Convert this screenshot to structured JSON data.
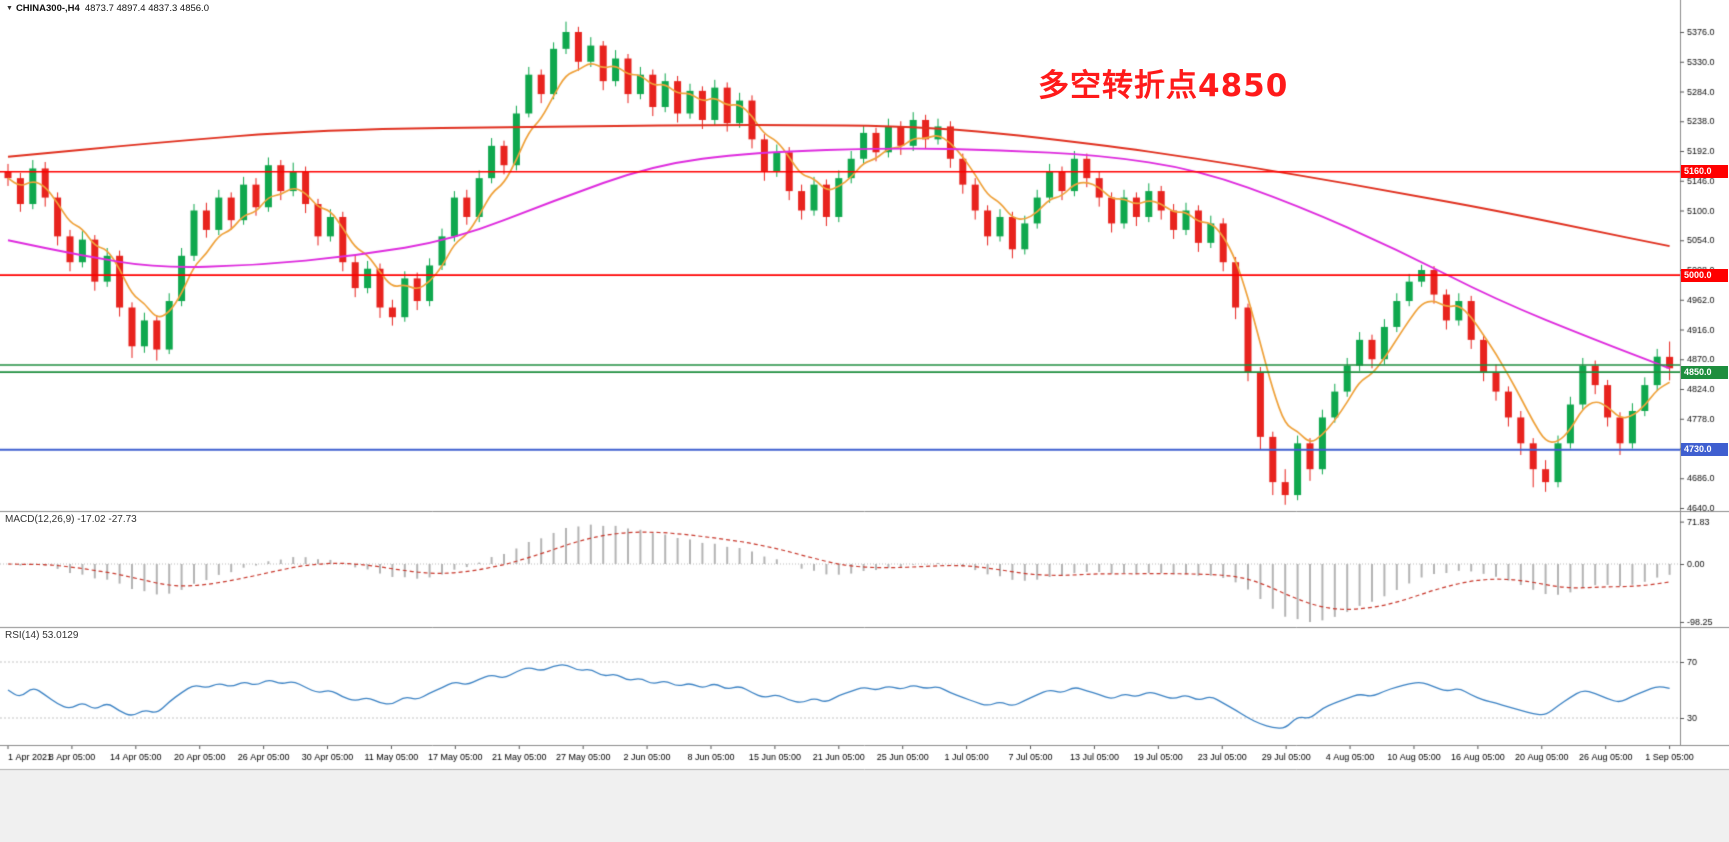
{
  "header": {
    "dropdown_icon": "▼",
    "symbol": "CHINA300-,H4",
    "ohlc": "4873.7 4897.4 4837.3 4856.0"
  },
  "annotation": {
    "text": "多空转折点4850",
    "color": "#FF1A1A"
  },
  "indicators": {
    "macd": {
      "label": "MACD(12,26,9) -17.02 -27.73"
    },
    "rsi": {
      "label": "RSI(14) 53.0129"
    }
  },
  "chart_data": {
    "type": "candlestick",
    "symbol": "CHINA300-",
    "timeframe": "H4",
    "title": "CHINA300- H4 chart with MACD and RSI",
    "y_range": [
      4640,
      5376
    ],
    "y_ticks": [
      5376.0,
      5330.0,
      5284.0,
      5238.0,
      5192.0,
      5146.0,
      5100.0,
      5054.0,
      5008.0,
      4962.0,
      4916.0,
      4870.0,
      4824.0,
      4778.0,
      4732.0,
      4686.0,
      4640.0
    ],
    "x_ticks": [
      "1 Apr 2021",
      "8 Apr 05:00",
      "14 Apr 05:00",
      "20 Apr 05:00",
      "26 Apr 05:00",
      "30 Apr 05:00",
      "11 May 05:00",
      "17 May 05:00",
      "21 May 05:00",
      "27 May 05:00",
      "2 Jun 05:00",
      "8 Jun 05:00",
      "15 Jun 05:00",
      "21 Jun 05:00",
      "25 Jun 05:00",
      "1 Jul 05:00",
      "7 Jul 05:00",
      "13 Jul 05:00",
      "19 Jul 05:00",
      "23 Jul 05:00",
      "29 Jul 05:00",
      "4 Aug 05:00",
      "10 Aug 05:00",
      "16 Aug 05:00",
      "20 Aug 05:00",
      "26 Aug 05:00",
      "1 Sep 05:00"
    ],
    "colors": {
      "up": "#0FA84E",
      "down": "#E8231E",
      "axis_text": "#111111"
    },
    "candles": [
      [
        5160,
        5172,
        5138,
        5150
      ],
      [
        5150,
        5158,
        5098,
        5110
      ],
      [
        5110,
        5178,
        5102,
        5165
      ],
      [
        5165,
        5175,
        5106,
        5120
      ],
      [
        5120,
        5128,
        5046,
        5060
      ],
      [
        5060,
        5070,
        5006,
        5020
      ],
      [
        5020,
        5068,
        5012,
        5055
      ],
      [
        5055,
        5062,
        4976,
        4990
      ],
      [
        4990,
        5042,
        4982,
        5030
      ],
      [
        5030,
        5038,
        4936,
        4950
      ],
      [
        4950,
        4958,
        4872,
        4890
      ],
      [
        4890,
        4942,
        4880,
        4930
      ],
      [
        4930,
        4938,
        4868,
        4885
      ],
      [
        4885,
        4972,
        4878,
        4960
      ],
      [
        4960,
        5042,
        4952,
        5030
      ],
      [
        5030,
        5110,
        5022,
        5100
      ],
      [
        5100,
        5112,
        5058,
        5070
      ],
      [
        5070,
        5132,
        5062,
        5120
      ],
      [
        5120,
        5128,
        5070,
        5085
      ],
      [
        5085,
        5152,
        5078,
        5140
      ],
      [
        5140,
        5150,
        5092,
        5105
      ],
      [
        5105,
        5182,
        5098,
        5170
      ],
      [
        5170,
        5178,
        5116,
        5130
      ],
      [
        5130,
        5174,
        5122,
        5160
      ],
      [
        5160,
        5168,
        5096,
        5110
      ],
      [
        5110,
        5118,
        5046,
        5060
      ],
      [
        5060,
        5102,
        5052,
        5090
      ],
      [
        5090,
        5098,
        5006,
        5020
      ],
      [
        5020,
        5030,
        4966,
        4980
      ],
      [
        4980,
        5022,
        4972,
        5010
      ],
      [
        5010,
        5018,
        4934,
        4950
      ],
      [
        4950,
        4962,
        4922,
        4935
      ],
      [
        4935,
        5006,
        4928,
        4995
      ],
      [
        4995,
        5004,
        4946,
        4960
      ],
      [
        4960,
        5026,
        4952,
        5015
      ],
      [
        5015,
        5072,
        5008,
        5060
      ],
      [
        5060,
        5130,
        5052,
        5120
      ],
      [
        5120,
        5132,
        5078,
        5090
      ],
      [
        5090,
        5162,
        5082,
        5150
      ],
      [
        5150,
        5212,
        5142,
        5200
      ],
      [
        5200,
        5208,
        5156,
        5170
      ],
      [
        5170,
        5262,
        5162,
        5250
      ],
      [
        5250,
        5322,
        5244,
        5310
      ],
      [
        5310,
        5318,
        5266,
        5280
      ],
      [
        5280,
        5360,
        5272,
        5350
      ],
      [
        5350,
        5392,
        5342,
        5376
      ],
      [
        5376,
        5384,
        5316,
        5330
      ],
      [
        5330,
        5368,
        5322,
        5355
      ],
      [
        5355,
        5362,
        5286,
        5300
      ],
      [
        5300,
        5348,
        5292,
        5335
      ],
      [
        5335,
        5342,
        5266,
        5280
      ],
      [
        5280,
        5322,
        5272,
        5310
      ],
      [
        5310,
        5318,
        5246,
        5260
      ],
      [
        5260,
        5312,
        5252,
        5300
      ],
      [
        5300,
        5308,
        5236,
        5250
      ],
      [
        5250,
        5296,
        5242,
        5285
      ],
      [
        5285,
        5292,
        5226,
        5240
      ],
      [
        5240,
        5302,
        5232,
        5290
      ],
      [
        5290,
        5298,
        5222,
        5235
      ],
      [
        5235,
        5282,
        5228,
        5270
      ],
      [
        5270,
        5278,
        5196,
        5210
      ],
      [
        5210,
        5218,
        5146,
        5160
      ],
      [
        5160,
        5202,
        5152,
        5190
      ],
      [
        5190,
        5198,
        5116,
        5130
      ],
      [
        5130,
        5140,
        5086,
        5100
      ],
      [
        5100,
        5152,
        5092,
        5140
      ],
      [
        5140,
        5148,
        5076,
        5090
      ],
      [
        5090,
        5162,
        5082,
        5150
      ],
      [
        5150,
        5192,
        5142,
        5180
      ],
      [
        5180,
        5232,
        5172,
        5220
      ],
      [
        5220,
        5228,
        5176,
        5190
      ],
      [
        5190,
        5242,
        5182,
        5230
      ],
      [
        5230,
        5238,
        5186,
        5200
      ],
      [
        5200,
        5252,
        5192,
        5240
      ],
      [
        5240,
        5248,
        5196,
        5210
      ],
      [
        5210,
        5242,
        5202,
        5230
      ],
      [
        5230,
        5238,
        5166,
        5180
      ],
      [
        5180,
        5188,
        5126,
        5140
      ],
      [
        5140,
        5150,
        5086,
        5100
      ],
      [
        5100,
        5108,
        5046,
        5060
      ],
      [
        5060,
        5102,
        5052,
        5090
      ],
      [
        5090,
        5098,
        5026,
        5040
      ],
      [
        5040,
        5092,
        5032,
        5080
      ],
      [
        5080,
        5132,
        5072,
        5120
      ],
      [
        5120,
        5172,
        5112,
        5160
      ],
      [
        5160,
        5168,
        5116,
        5130
      ],
      [
        5130,
        5192,
        5122,
        5180
      ],
      [
        5180,
        5188,
        5136,
        5150
      ],
      [
        5150,
        5160,
        5106,
        5120
      ],
      [
        5120,
        5128,
        5066,
        5080
      ],
      [
        5080,
        5132,
        5072,
        5120
      ],
      [
        5120,
        5128,
        5076,
        5090
      ],
      [
        5090,
        5142,
        5082,
        5130
      ],
      [
        5130,
        5138,
        5086,
        5100
      ],
      [
        5100,
        5110,
        5056,
        5070
      ],
      [
        5070,
        5112,
        5062,
        5100
      ],
      [
        5100,
        5108,
        5036,
        5050
      ],
      [
        5050,
        5092,
        5042,
        5080
      ],
      [
        5080,
        5088,
        5006,
        5020
      ],
      [
        5020,
        5028,
        4932,
        4950
      ],
      [
        4950,
        4956,
        4836,
        4850
      ],
      [
        4850,
        4858,
        4730,
        4750
      ],
      [
        4750,
        4758,
        4660,
        4680
      ],
      [
        4680,
        4700,
        4645,
        4660
      ],
      [
        4660,
        4752,
        4652,
        4740
      ],
      [
        4740,
        4748,
        4682,
        4700
      ],
      [
        4700,
        4792,
        4692,
        4780
      ],
      [
        4780,
        4832,
        4772,
        4820
      ],
      [
        4820,
        4872,
        4812,
        4860
      ],
      [
        4860,
        4912,
        4852,
        4900
      ],
      [
        4900,
        4908,
        4856,
        4870
      ],
      [
        4870,
        4932,
        4862,
        4920
      ],
      [
        4920,
        4972,
        4912,
        4960
      ],
      [
        4960,
        5002,
        4952,
        4990
      ],
      [
        4990,
        5016,
        4982,
        5008
      ],
      [
        5008,
        5014,
        4956,
        4970
      ],
      [
        4970,
        4978,
        4916,
        4930
      ],
      [
        4930,
        4972,
        4922,
        4960
      ],
      [
        4960,
        4968,
        4886,
        4900
      ],
      [
        4900,
        4908,
        4836,
        4850
      ],
      [
        4850,
        4862,
        4806,
        4820
      ],
      [
        4820,
        4828,
        4766,
        4780
      ],
      [
        4780,
        4790,
        4722,
        4740
      ],
      [
        4740,
        4748,
        4672,
        4700
      ],
      [
        4700,
        4714,
        4665,
        4680
      ],
      [
        4680,
        4752,
        4672,
        4740
      ],
      [
        4740,
        4812,
        4732,
        4800
      ],
      [
        4800,
        4872,
        4792,
        4860
      ],
      [
        4860,
        4868,
        4816,
        4830
      ],
      [
        4830,
        4838,
        4766,
        4780
      ],
      [
        4780,
        4788,
        4722,
        4740
      ],
      [
        4740,
        4802,
        4732,
        4790
      ],
      [
        4790,
        4842,
        4782,
        4830
      ],
      [
        4830,
        4886,
        4822,
        4874
      ],
      [
        4873.7,
        4897.4,
        4837.3,
        4856.0
      ]
    ],
    "levels": [
      {
        "price": 5160.0,
        "label": "5160.0",
        "color": "#FF0000",
        "width": 1.6
      },
      {
        "price": 5000.0,
        "label": "5000.0",
        "color": "#FF0000",
        "width": 1.6
      },
      {
        "price": 4861.0,
        "label": null,
        "color": "#1E8E3E",
        "width": 1.4
      },
      {
        "price": 4850.0,
        "label": "4850.0",
        "color": "#1E8E3E",
        "width": 1.8
      },
      {
        "price": 4730.0,
        "label": "4730.0",
        "color": "#3F5FD0",
        "width": 2
      }
    ],
    "moving_averages": {
      "fast_orange": {
        "type": "ema",
        "period": 5,
        "color": "#EFA23B"
      },
      "mid_magenta": {
        "color": "#DE2BDE",
        "points": [
          [
            0,
            5054
          ],
          [
            6,
            5030
          ],
          [
            12,
            5011
          ],
          [
            20,
            5015
          ],
          [
            28,
            5030
          ],
          [
            36,
            5055
          ],
          [
            44,
            5115
          ],
          [
            52,
            5170
          ],
          [
            60,
            5190
          ],
          [
            72,
            5197
          ],
          [
            80,
            5193
          ],
          [
            88,
            5186
          ],
          [
            96,
            5163
          ],
          [
            104,
            5108
          ],
          [
            112,
            5040
          ],
          [
            120,
            4962
          ],
          [
            128,
            4900
          ],
          [
            134,
            4856
          ]
        ]
      },
      "slow_red": {
        "color": "#E0301F",
        "points": [
          [
            0,
            5183
          ],
          [
            12,
            5205
          ],
          [
            25,
            5225
          ],
          [
            45,
            5230
          ],
          [
            60,
            5233
          ],
          [
            75,
            5230
          ],
          [
            88,
            5202
          ],
          [
            96,
            5180
          ],
          [
            104,
            5155
          ],
          [
            112,
            5128
          ],
          [
            120,
            5100
          ],
          [
            127,
            5072
          ],
          [
            134,
            5045
          ]
        ]
      }
    },
    "macd_panel": {
      "fast": 12,
      "slow": 26,
      "signal": 9,
      "main_value": -17.02,
      "signal_value": -27.73,
      "axis": [
        71.83,
        0.0,
        -98.25
      ],
      "histogram_color": "#B4B4B4",
      "signal_color": "#C8382C"
    },
    "rsi_panel": {
      "period": 14,
      "value": 53.0129,
      "levels": [
        70,
        30
      ],
      "axis": [
        "70",
        "30"
      ],
      "color": "#3B82C4"
    }
  }
}
